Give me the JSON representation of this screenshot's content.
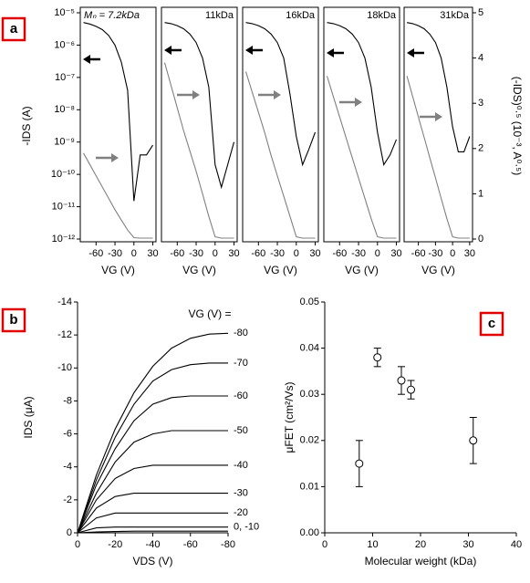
{
  "panel_labels": [
    "a",
    "b",
    "c"
  ],
  "chart_data": [
    {
      "type": "line",
      "ylog": true,
      "frame": "box",
      "annotation": "Mₙ = 7.2kDa",
      "ylabel": "-IDS (A)",
      "xlabel": "VG (V)",
      "x": [
        -80,
        -70,
        -60,
        -50,
        -40,
        -30,
        -20,
        -10,
        0,
        10,
        20,
        30
      ],
      "xlim": [
        -85,
        35
      ],
      "xticks": [
        -60,
        -30,
        0,
        30
      ],
      "ylim": [
        1e-12,
        1e-05
      ],
      "y2lim": [
        0,
        5
      ],
      "yticks": [
        {
          "value": 1e-05,
          "label": "10⁻⁵"
        },
        {
          "value": 1e-06,
          "label": "10⁻⁶"
        },
        {
          "value": 1e-07,
          "label": "10⁻⁷"
        },
        {
          "value": 1e-08,
          "label": "10⁻⁸"
        },
        {
          "value": 1e-09,
          "label": "10⁻⁹"
        },
        {
          "value": 1e-10,
          "label": "10⁻¹⁰"
        },
        {
          "value": 1e-11,
          "label": "10⁻¹¹"
        },
        {
          "value": 1e-12,
          "label": "10⁻¹²"
        }
      ],
      "series": [
        {
          "color": "#000000",
          "values": [
            5e-06,
            4.5e-06,
            3.8e-06,
            3e-06,
            2e-06,
            1e-06,
            3e-07,
            4e-08,
            1.5e-11,
            4e-10,
            4e-10,
            8e-10
          ]
        },
        {
          "color": "#808080",
          "axis": "y2",
          "values": [
            1.9,
            1.65,
            1.4,
            1.15,
            0.9,
            0.65,
            0.42,
            0.2,
            0.03,
            0.02,
            0.02,
            0.02
          ]
        }
      ]
    },
    {
      "type": "line",
      "ylog": true,
      "frame": "box",
      "annotation": "11kDa",
      "xlabel": "VG (V)",
      "x": [
        -80,
        -70,
        -60,
        -50,
        -40,
        -30,
        -20,
        -10,
        0,
        10,
        20,
        30
      ],
      "xlim": [
        -85,
        35
      ],
      "xticks": [
        -60,
        -30,
        0,
        30
      ],
      "ylim": [
        1e-12,
        1e-05
      ],
      "y2lim": [
        0,
        5
      ],
      "series": [
        {
          "color": "#000000",
          "values": [
            5e-06,
            4.6e-06,
            4e-06,
            3.2e-06,
            2.2e-06,
            1.2e-06,
            4e-07,
            5e-08,
            2e-10,
            4e-11,
            2e-10,
            1e-09
          ]
        },
        {
          "color": "#808080",
          "axis": "y2",
          "values": [
            3.9,
            3.4,
            2.9,
            2.4,
            1.95,
            1.5,
            1.0,
            0.5,
            0.05,
            0.02,
            0.02,
            0.02
          ]
        }
      ]
    },
    {
      "type": "line",
      "ylog": true,
      "frame": "box",
      "annotation": "16kDa",
      "xlabel": "VG (V)",
      "x": [
        -80,
        -70,
        -60,
        -50,
        -40,
        -30,
        -20,
        -10,
        0,
        10,
        20,
        30
      ],
      "xlim": [
        -85,
        35
      ],
      "xticks": [
        -60,
        -30,
        0,
        30
      ],
      "ylim": [
        1e-12,
        1e-05
      ],
      "y2lim": [
        0,
        5
      ],
      "series": [
        {
          "color": "#000000",
          "values": [
            5e-06,
            4.6e-06,
            4e-06,
            3.2e-06,
            2.2e-06,
            1.2e-06,
            4e-07,
            3e-08,
            1.5e-09,
            2e-10,
            6e-10,
            2e-09
          ]
        },
        {
          "color": "#808080",
          "axis": "y2",
          "values": [
            3.7,
            3.25,
            2.8,
            2.35,
            1.85,
            1.4,
            0.95,
            0.5,
            0.05,
            0.02,
            0.02,
            0.02
          ]
        }
      ]
    },
    {
      "type": "line",
      "ylog": true,
      "frame": "box",
      "annotation": "18kDa",
      "xlabel": "VG (V)",
      "x": [
        -80,
        -70,
        -60,
        -50,
        -40,
        -30,
        -20,
        -10,
        0,
        10,
        20,
        30
      ],
      "xlim": [
        -85,
        35
      ],
      "xticks": [
        -60,
        -30,
        0,
        30
      ],
      "ylim": [
        1e-12,
        1e-05
      ],
      "y2lim": [
        0,
        5
      ],
      "series": [
        {
          "color": "#000000",
          "values": [
            5e-06,
            4.6e-06,
            4e-06,
            3.2e-06,
            2.2e-06,
            1.2e-06,
            4e-07,
            5e-08,
            2e-09,
            2e-10,
            4e-10,
            1.2e-09
          ]
        },
        {
          "color": "#808080",
          "axis": "y2",
          "values": [
            3.6,
            3.15,
            2.7,
            2.25,
            1.8,
            1.35,
            0.9,
            0.45,
            0.05,
            0.02,
            0.02,
            0.02
          ]
        }
      ]
    },
    {
      "type": "line",
      "ylog": true,
      "frame": "box",
      "annotation": "31kDa",
      "xlabel": "VG (V)",
      "y2label": "(-IDS)⁰·⁵ (10⁻³, A⁰·⁵)",
      "x": [
        -80,
        -70,
        -60,
        -50,
        -40,
        -30,
        -20,
        -10,
        0,
        10,
        20,
        30
      ],
      "xlim": [
        -85,
        35
      ],
      "xticks": [
        -60,
        -30,
        0,
        30
      ],
      "ylim": [
        1e-12,
        1e-05
      ],
      "y2lim": [
        0,
        5
      ],
      "y2ticks": [
        0,
        1,
        2,
        3,
        4,
        5
      ],
      "series": [
        {
          "color": "#000000",
          "values": [
            5e-06,
            4.6e-06,
            4e-06,
            3.2e-06,
            2.2e-06,
            1.2e-06,
            4e-07,
            5e-08,
            3e-09,
            5e-10,
            5e-10,
            1.5e-09
          ]
        },
        {
          "color": "#808080",
          "axis": "y2",
          "values": [
            3.6,
            3.15,
            2.7,
            2.25,
            1.8,
            1.35,
            0.9,
            0.45,
            0.05,
            0.02,
            0.02,
            0.02
          ]
        }
      ]
    },
    {
      "type": "line",
      "frame": "open",
      "xlabel": "VDS (V)",
      "ylabel": "IDS (μA)",
      "legend_title": "VG (V) =",
      "x": [
        0,
        -10,
        -20,
        -30,
        -40,
        -50,
        -60,
        -70,
        -80
      ],
      "xlim": [
        0,
        -80
      ],
      "xticks": [
        0,
        -20,
        -40,
        -60,
        -80
      ],
      "ylim": [
        0,
        -14
      ],
      "yticks": [
        0,
        -2,
        -4,
        -6,
        -8,
        -10,
        -12,
        -14
      ],
      "series": [
        {
          "name": "-80",
          "color": "#000000",
          "values": [
            0,
            -3.5,
            -6.3,
            -8.5,
            -10.1,
            -11.2,
            -11.8,
            -12.05,
            -12.1
          ]
        },
        {
          "name": "-70",
          "color": "#000000",
          "values": [
            0,
            -3.2,
            -5.8,
            -7.8,
            -9.2,
            -9.9,
            -10.2,
            -10.3,
            -10.3
          ]
        },
        {
          "name": "-60",
          "color": "#000000",
          "values": [
            0,
            -2.9,
            -5.1,
            -6.8,
            -7.8,
            -8.2,
            -8.3,
            -8.3,
            -8.3
          ]
        },
        {
          "name": "-50",
          "color": "#000000",
          "values": [
            0,
            -2.4,
            -4.3,
            -5.5,
            -6.0,
            -6.2,
            -6.2,
            -6.2,
            -6.2
          ]
        },
        {
          "name": "-40",
          "color": "#000000",
          "values": [
            0,
            -2.0,
            -3.3,
            -3.9,
            -4.1,
            -4.1,
            -4.1,
            -4.1,
            -4.1
          ]
        },
        {
          "name": "-30",
          "color": "#000000",
          "values": [
            0,
            -1.5,
            -2.2,
            -2.4,
            -2.4,
            -2.4,
            -2.4,
            -2.4,
            -2.4
          ]
        },
        {
          "name": "-20",
          "color": "#000000",
          "values": [
            0,
            -0.9,
            -1.2,
            -1.2,
            -1.2,
            -1.2,
            -1.2,
            -1.2,
            -1.2
          ]
        },
        {
          "name": "0, -10",
          "color": "#000000",
          "values": [
            0,
            -0.3,
            -0.35,
            -0.35,
            -0.35,
            -0.35,
            -0.35,
            -0.35,
            -0.35
          ]
        },
        {
          "color": "#000000",
          "values": [
            0,
            -0.05,
            -0.08,
            -0.1,
            -0.1,
            -0.1,
            -0.1,
            -0.1,
            -0.1
          ]
        }
      ]
    },
    {
      "type": "scatter",
      "frame": "open",
      "xlabel": "Molecular weight (kDa)",
      "ylabel": "μFET (cm²/Vs)",
      "x": [
        7.2,
        11,
        16,
        18,
        31
      ],
      "values": [
        0.015,
        0.038,
        0.033,
        0.031,
        0.02
      ],
      "errors": [
        0.005,
        0.002,
        0.003,
        0.002,
        0.005
      ],
      "xlim": [
        0,
        40
      ],
      "xticks": [
        0,
        10,
        20,
        30,
        40
      ],
      "ylim": [
        0,
        0.05
      ],
      "yticks": [
        {
          "value": 0,
          "label": "0.00"
        },
        0.01,
        0.02,
        0.03,
        0.04,
        0.05
      ]
    }
  ]
}
